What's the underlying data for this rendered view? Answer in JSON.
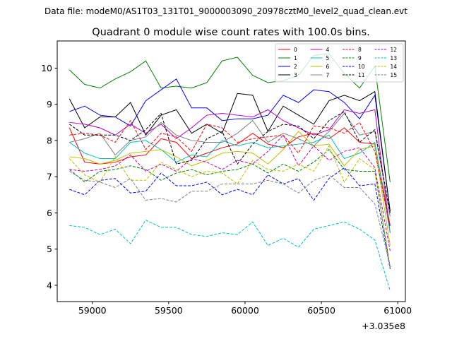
{
  "chart_data": {
    "type": "line",
    "suptitle": "Data file: modeM0/AS1T03_131T01_9000003090_20978cztM0_level2_quad_clean.evt",
    "title": "Quadrant 0 module wise count rates with 100.0s bins.",
    "xlabel": "",
    "ylabel": "",
    "x_offset_label": "+3.035e8",
    "xlim": [
      58770,
      61050
    ],
    "ylim": [
      3.55,
      10.75
    ],
    "xticks": [
      59000,
      59500,
      60000,
      60500,
      61000
    ],
    "xtick_labels": [
      "59000",
      "59500",
      "60000",
      "60500",
      "61000"
    ],
    "yticks": [
      4,
      5,
      6,
      7,
      8,
      9,
      10
    ],
    "ytick_labels": [
      "4",
      "5",
      "6",
      "7",
      "8",
      "9",
      "10"
    ],
    "legend_position": "top-right",
    "x": [
      58850,
      58950,
      59050,
      59150,
      59250,
      59350,
      59450,
      59550,
      59650,
      59750,
      59850,
      59950,
      60050,
      60150,
      60250,
      60350,
      60450,
      60550,
      60650,
      60750,
      60850,
      60950
    ],
    "series": [
      {
        "name": "0",
        "color": "#ff0000",
        "dash": "solid",
        "values": [
          8.35,
          7.4,
          7.35,
          7.4,
          7.55,
          7.6,
          8.05,
          7.95,
          7.5,
          7.65,
          7.8,
          7.9,
          8.2,
          7.9,
          7.8,
          8.1,
          8.2,
          8.05,
          8.35,
          7.95,
          7.9,
          5.65
        ]
      },
      {
        "name": "1",
        "color": "#008000",
        "dash": "solid",
        "values": [
          9.95,
          9.55,
          9.45,
          9.7,
          9.9,
          10.2,
          9.45,
          9.5,
          9.45,
          9.6,
          10.2,
          10.3,
          9.8,
          9.6,
          9.65,
          9.8,
          10.35,
          10.4,
          9.85,
          9.45,
          10.05,
          6.85
        ]
      },
      {
        "name": "2",
        "color": "#0000ff",
        "dash": "solid",
        "values": [
          8.8,
          8.95,
          8.7,
          8.65,
          8.4,
          9.1,
          9.4,
          9.7,
          8.9,
          8.9,
          8.55,
          8.6,
          8.6,
          8.7,
          9.25,
          9.05,
          9.4,
          9.35,
          9.05,
          8.6,
          9.25,
          6.05
        ]
      },
      {
        "name": "3",
        "color": "#000000",
        "dash": "solid",
        "values": [
          9.15,
          8.35,
          8.65,
          8.65,
          9.05,
          8.15,
          8.7,
          8.85,
          8.2,
          8.45,
          8.2,
          9.3,
          9.25,
          8.25,
          8.95,
          8.7,
          8.45,
          9.1,
          9.25,
          9.1,
          9.35,
          6.05
        ]
      },
      {
        "name": "4",
        "color": "#bf00bf",
        "dash": "solid",
        "values": [
          8.5,
          8.45,
          8.35,
          8.15,
          8.45,
          8.2,
          8.45,
          8.05,
          8.35,
          8.7,
          8.75,
          8.7,
          8.65,
          8.85,
          8.55,
          8.35,
          8.15,
          8.3,
          8.85,
          8.75,
          8.85,
          5.45
        ]
      },
      {
        "name": "5",
        "color": "#00bfbf",
        "dash": "solid",
        "values": [
          7.95,
          7.65,
          7.5,
          7.5,
          7.95,
          8.0,
          7.75,
          7.4,
          7.6,
          7.55,
          8.0,
          7.85,
          7.95,
          7.8,
          7.85,
          7.9,
          7.95,
          8.15,
          7.5,
          7.65,
          7.95,
          5.45
        ]
      },
      {
        "name": "6",
        "color": "#bfbf00",
        "dash": "solid",
        "values": [
          7.55,
          7.5,
          7.35,
          7.45,
          7.65,
          7.7,
          7.75,
          7.55,
          7.3,
          7.45,
          7.65,
          7.7,
          7.65,
          7.35,
          7.75,
          8.25,
          7.85,
          7.9,
          7.3,
          7.75,
          7.85,
          5.1
        ]
      },
      {
        "name": "7",
        "color": "#808080",
        "dash": "solid",
        "values": [
          7.95,
          8.05,
          8.2,
          7.6,
          8.0,
          8.1,
          8.5,
          8.15,
          8.0,
          7.95,
          7.95,
          8.2,
          8.55,
          7.95,
          8.2,
          8.05,
          7.85,
          8.25,
          8.75,
          8.15,
          8.25,
          5.9
        ]
      },
      {
        "name": "8",
        "color": "#ff0000",
        "dash": "dashed",
        "values": [
          8.15,
          8.2,
          8.15,
          7.95,
          8.55,
          7.75,
          8.2,
          8.1,
          7.7,
          8.45,
          8.35,
          7.95,
          8.05,
          8.1,
          8.15,
          7.65,
          8.4,
          8.35,
          8.2,
          8.5,
          7.7,
          5.6
        ]
      },
      {
        "name": "9",
        "color": "#008000",
        "dash": "dashed",
        "values": [
          7.2,
          6.85,
          7.15,
          7.2,
          7.3,
          7.2,
          6.9,
          7.1,
          7.2,
          7.05,
          7.15,
          7.2,
          7.35,
          7.1,
          7.35,
          7.15,
          7.4,
          7.75,
          7.2,
          7.15,
          7.15,
          4.5
        ]
      },
      {
        "name": "10",
        "color": "#0000ff",
        "dash": "dashed",
        "values": [
          6.65,
          6.5,
          6.9,
          6.95,
          6.55,
          6.6,
          7.1,
          6.75,
          6.75,
          6.85,
          6.5,
          6.65,
          6.5,
          7.05,
          6.8,
          6.95,
          6.35,
          6.95,
          7.25,
          6.75,
          6.8,
          4.45
        ]
      },
      {
        "name": "11",
        "color": "#000000",
        "dash": "dashed",
        "values": [
          8.45,
          8.15,
          8.15,
          8.15,
          8.0,
          8.3,
          8.75,
          7.35,
          7.45,
          8.05,
          8.25,
          7.35,
          7.9,
          8.25,
          8.45,
          8.4,
          8.05,
          8.55,
          8.8,
          7.95,
          8.3,
          6.0
        ]
      },
      {
        "name": "12",
        "color": "#bf00bf",
        "dash": "dashed",
        "values": [
          7.2,
          7.15,
          7.2,
          7.3,
          7.6,
          7.15,
          7.35,
          7.15,
          7.5,
          7.4,
          7.2,
          7.45,
          7.35,
          7.7,
          8.15,
          7.3,
          7.85,
          7.45,
          7.7,
          7.8,
          7.25,
          4.95
        ]
      },
      {
        "name": "13",
        "color": "#00bfbf",
        "dash": "dashed",
        "values": [
          5.65,
          5.6,
          5.4,
          5.55,
          5.15,
          5.8,
          5.6,
          5.6,
          5.4,
          5.35,
          5.45,
          5.4,
          5.75,
          5.1,
          5.3,
          5.05,
          5.55,
          5.65,
          5.75,
          5.55,
          5.25,
          3.85
        ]
      },
      {
        "name": "14",
        "color": "#bfbf00",
        "dash": "dashed",
        "values": [
          7.5,
          7.05,
          6.85,
          7.55,
          6.9,
          6.9,
          7.4,
          7.2,
          7.0,
          7.15,
          7.1,
          6.8,
          7.45,
          7.2,
          7.15,
          7.35,
          7.15,
          7.85,
          6.85,
          7.5,
          7.2,
          4.5
        ]
      },
      {
        "name": "15",
        "color": "#808080",
        "dash": "dashed",
        "values": [
          7.15,
          6.9,
          6.85,
          6.7,
          6.95,
          6.35,
          6.4,
          6.3,
          6.6,
          6.6,
          6.8,
          6.8,
          6.8,
          6.9,
          6.8,
          6.55,
          6.9,
          7.05,
          6.7,
          6.7,
          6.25,
          4.55
        ]
      }
    ]
  }
}
